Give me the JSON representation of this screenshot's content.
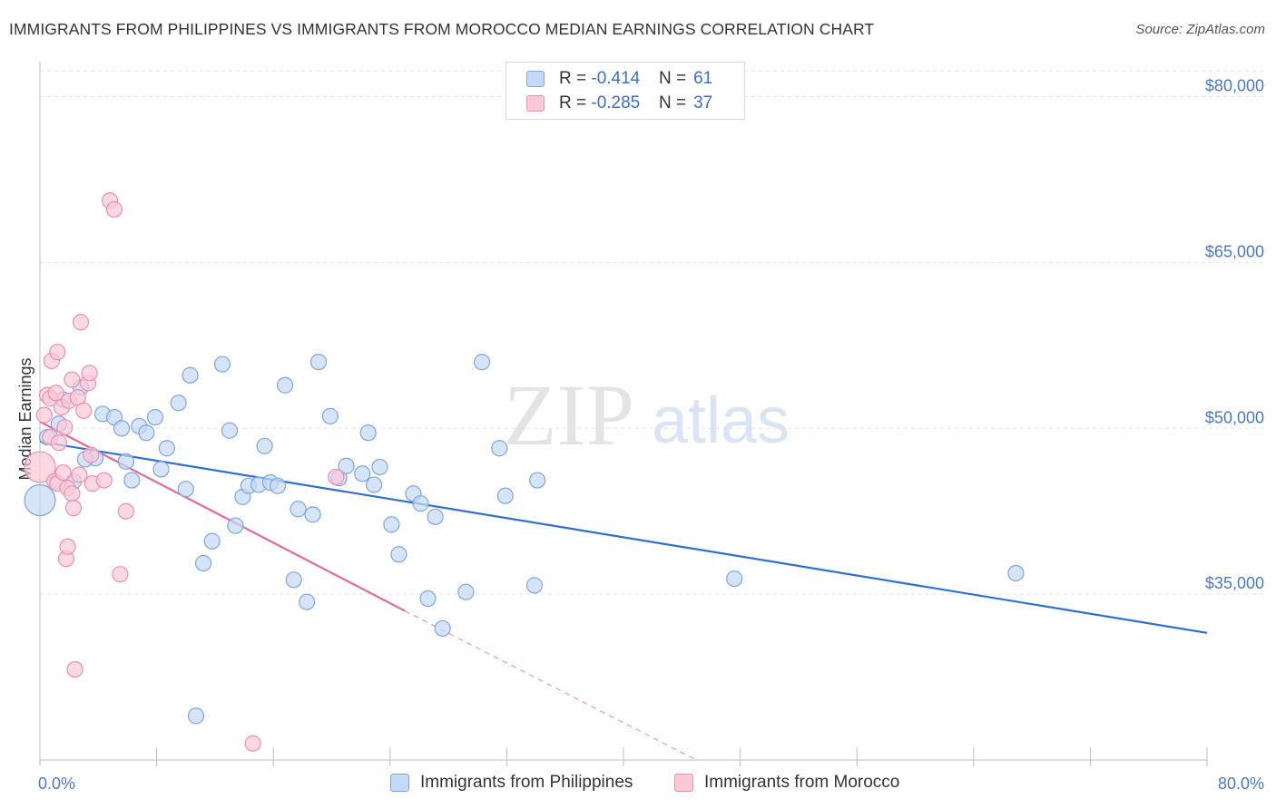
{
  "header": {
    "title": "IMMIGRANTS FROM PHILIPPINES VS IMMIGRANTS FROM MOROCCO MEDIAN EARNINGS CORRELATION CHART",
    "source": "Source: ZipAtlas.com"
  },
  "watermark": {
    "zip": "ZIP",
    "atlas": "atlas"
  },
  "legend": {
    "rows": [
      {
        "r_label": "R = ",
        "r_value": "-0.414",
        "n_label": "N = ",
        "n_value": "61"
      },
      {
        "r_label": "R = ",
        "r_value": "-0.285",
        "n_label": "N = ",
        "n_value": "37"
      }
    ]
  },
  "colors": {
    "philippines_fill": "#c5d8f5",
    "philippines_stroke": "#7ea6dd",
    "philippines_line": "#2f6fd1",
    "morocco_fill": "#f9c9d7",
    "morocco_stroke": "#ec8fae",
    "morocco_line": "#e36b96",
    "grid": "#e3e3e3"
  },
  "chart_data": {
    "type": "scatter",
    "title": "IMMIGRANTS FROM PHILIPPINES VS IMMIGRANTS FROM MOROCCO MEDIAN EARNINGS CORRELATION CHART",
    "xlabel": "",
    "ylabel": "Median Earnings",
    "xlim": [
      0,
      80
    ],
    "ylim": [
      20000,
      83000
    ],
    "x_tick_labels": [
      "0.0%",
      "80.0%"
    ],
    "y_ticks": [
      35000,
      50000,
      65000,
      80000
    ],
    "y_tick_labels": [
      "$35,000",
      "$50,000",
      "$65,000",
      "$80,000"
    ],
    "grid": true,
    "legend_position": "top-center and bottom",
    "series": [
      {
        "name": "Immigrants from Philippines",
        "r": -0.414,
        "n": 61,
        "trend": {
          "x": [
            0,
            80
          ],
          "y": [
            48800,
            31500
          ]
        },
        "points": [
          {
            "x": 0.0,
            "y": 43500,
            "big": true
          },
          {
            "x": 0.5,
            "y": 49200
          },
          {
            "x": 1.3,
            "y": 50400
          },
          {
            "x": 1.6,
            "y": 52600
          },
          {
            "x": 2.3,
            "y": 45200
          },
          {
            "x": 2.8,
            "y": 53700
          },
          {
            "x": 3.8,
            "y": 47300
          },
          {
            "x": 4.3,
            "y": 51300
          },
          {
            "x": 3.1,
            "y": 47200
          },
          {
            "x": 5.1,
            "y": 51000
          },
          {
            "x": 5.6,
            "y": 50000
          },
          {
            "x": 5.9,
            "y": 47000
          },
          {
            "x": 6.3,
            "y": 45300
          },
          {
            "x": 6.8,
            "y": 50200
          },
          {
            "x": 7.3,
            "y": 49600
          },
          {
            "x": 7.9,
            "y": 51000
          },
          {
            "x": 8.3,
            "y": 46300
          },
          {
            "x": 8.7,
            "y": 48200
          },
          {
            "x": 9.5,
            "y": 52300
          },
          {
            "x": 10.0,
            "y": 44500
          },
          {
            "x": 10.3,
            "y": 54800
          },
          {
            "x": 10.7,
            "y": 24000
          },
          {
            "x": 11.2,
            "y": 37800
          },
          {
            "x": 11.8,
            "y": 39800
          },
          {
            "x": 12.5,
            "y": 55800
          },
          {
            "x": 13.0,
            "y": 49800
          },
          {
            "x": 13.4,
            "y": 41200
          },
          {
            "x": 13.9,
            "y": 43800
          },
          {
            "x": 14.3,
            "y": 44800
          },
          {
            "x": 15.0,
            "y": 44900
          },
          {
            "x": 15.4,
            "y": 48400
          },
          {
            "x": 15.8,
            "y": 45100
          },
          {
            "x": 16.3,
            "y": 44800
          },
          {
            "x": 16.8,
            "y": 53900
          },
          {
            "x": 17.4,
            "y": 36300
          },
          {
            "x": 17.7,
            "y": 42700
          },
          {
            "x": 18.3,
            "y": 34300
          },
          {
            "x": 18.7,
            "y": 42200
          },
          {
            "x": 19.1,
            "y": 56000
          },
          {
            "x": 19.9,
            "y": 51100
          },
          {
            "x": 20.5,
            "y": 45500
          },
          {
            "x": 21.0,
            "y": 46600
          },
          {
            "x": 22.1,
            "y": 45900
          },
          {
            "x": 22.5,
            "y": 49600
          },
          {
            "x": 22.9,
            "y": 44900
          },
          {
            "x": 23.3,
            "y": 46500
          },
          {
            "x": 24.1,
            "y": 41300
          },
          {
            "x": 24.6,
            "y": 38600
          },
          {
            "x": 25.6,
            "y": 44100
          },
          {
            "x": 26.1,
            "y": 43200
          },
          {
            "x": 26.6,
            "y": 34600
          },
          {
            "x": 27.1,
            "y": 42000
          },
          {
            "x": 27.6,
            "y": 31900
          },
          {
            "x": 29.2,
            "y": 35200
          },
          {
            "x": 30.3,
            "y": 56000
          },
          {
            "x": 31.5,
            "y": 48200
          },
          {
            "x": 31.9,
            "y": 43900
          },
          {
            "x": 33.9,
            "y": 35800
          },
          {
            "x": 34.1,
            "y": 45300
          },
          {
            "x": 47.6,
            "y": 36400
          },
          {
            "x": 66.9,
            "y": 36900
          }
        ]
      },
      {
        "name": "Immigrants from Morocco",
        "r": -0.285,
        "n": 37,
        "trend": {
          "x": [
            0,
            25
          ],
          "y": [
            50600,
            33500
          ]
        },
        "trend_extension": {
          "x": [
            25,
            45
          ],
          "y": [
            33500,
            20000
          ]
        },
        "points": [
          {
            "x": 0.0,
            "y": 46500,
            "big": true
          },
          {
            "x": 0.3,
            "y": 51200
          },
          {
            "x": 0.5,
            "y": 53000
          },
          {
            "x": 0.7,
            "y": 49200
          },
          {
            "x": 0.7,
            "y": 52700
          },
          {
            "x": 0.8,
            "y": 56100
          },
          {
            "x": 1.0,
            "y": 45200
          },
          {
            "x": 1.1,
            "y": 53200
          },
          {
            "x": 1.2,
            "y": 45000
          },
          {
            "x": 1.2,
            "y": 56900
          },
          {
            "x": 1.3,
            "y": 48700
          },
          {
            "x": 1.5,
            "y": 51900
          },
          {
            "x": 1.6,
            "y": 46000
          },
          {
            "x": 1.7,
            "y": 50100
          },
          {
            "x": 1.8,
            "y": 38200
          },
          {
            "x": 1.9,
            "y": 39300
          },
          {
            "x": 1.9,
            "y": 44600
          },
          {
            "x": 2.0,
            "y": 52500
          },
          {
            "x": 2.2,
            "y": 54400
          },
          {
            "x": 2.2,
            "y": 44100
          },
          {
            "x": 2.3,
            "y": 42800
          },
          {
            "x": 2.4,
            "y": 28200
          },
          {
            "x": 2.6,
            "y": 52800
          },
          {
            "x": 2.7,
            "y": 45800
          },
          {
            "x": 2.8,
            "y": 59600
          },
          {
            "x": 3.0,
            "y": 51600
          },
          {
            "x": 3.3,
            "y": 54100
          },
          {
            "x": 3.4,
            "y": 55000
          },
          {
            "x": 3.5,
            "y": 47600
          },
          {
            "x": 3.6,
            "y": 45000
          },
          {
            "x": 4.4,
            "y": 45300
          },
          {
            "x": 5.5,
            "y": 36800
          },
          {
            "x": 5.9,
            "y": 42500
          },
          {
            "x": 4.8,
            "y": 70600
          },
          {
            "x": 5.1,
            "y": 69800
          },
          {
            "x": 14.6,
            "y": 21500
          },
          {
            "x": 20.3,
            "y": 45600
          }
        ]
      }
    ]
  }
}
